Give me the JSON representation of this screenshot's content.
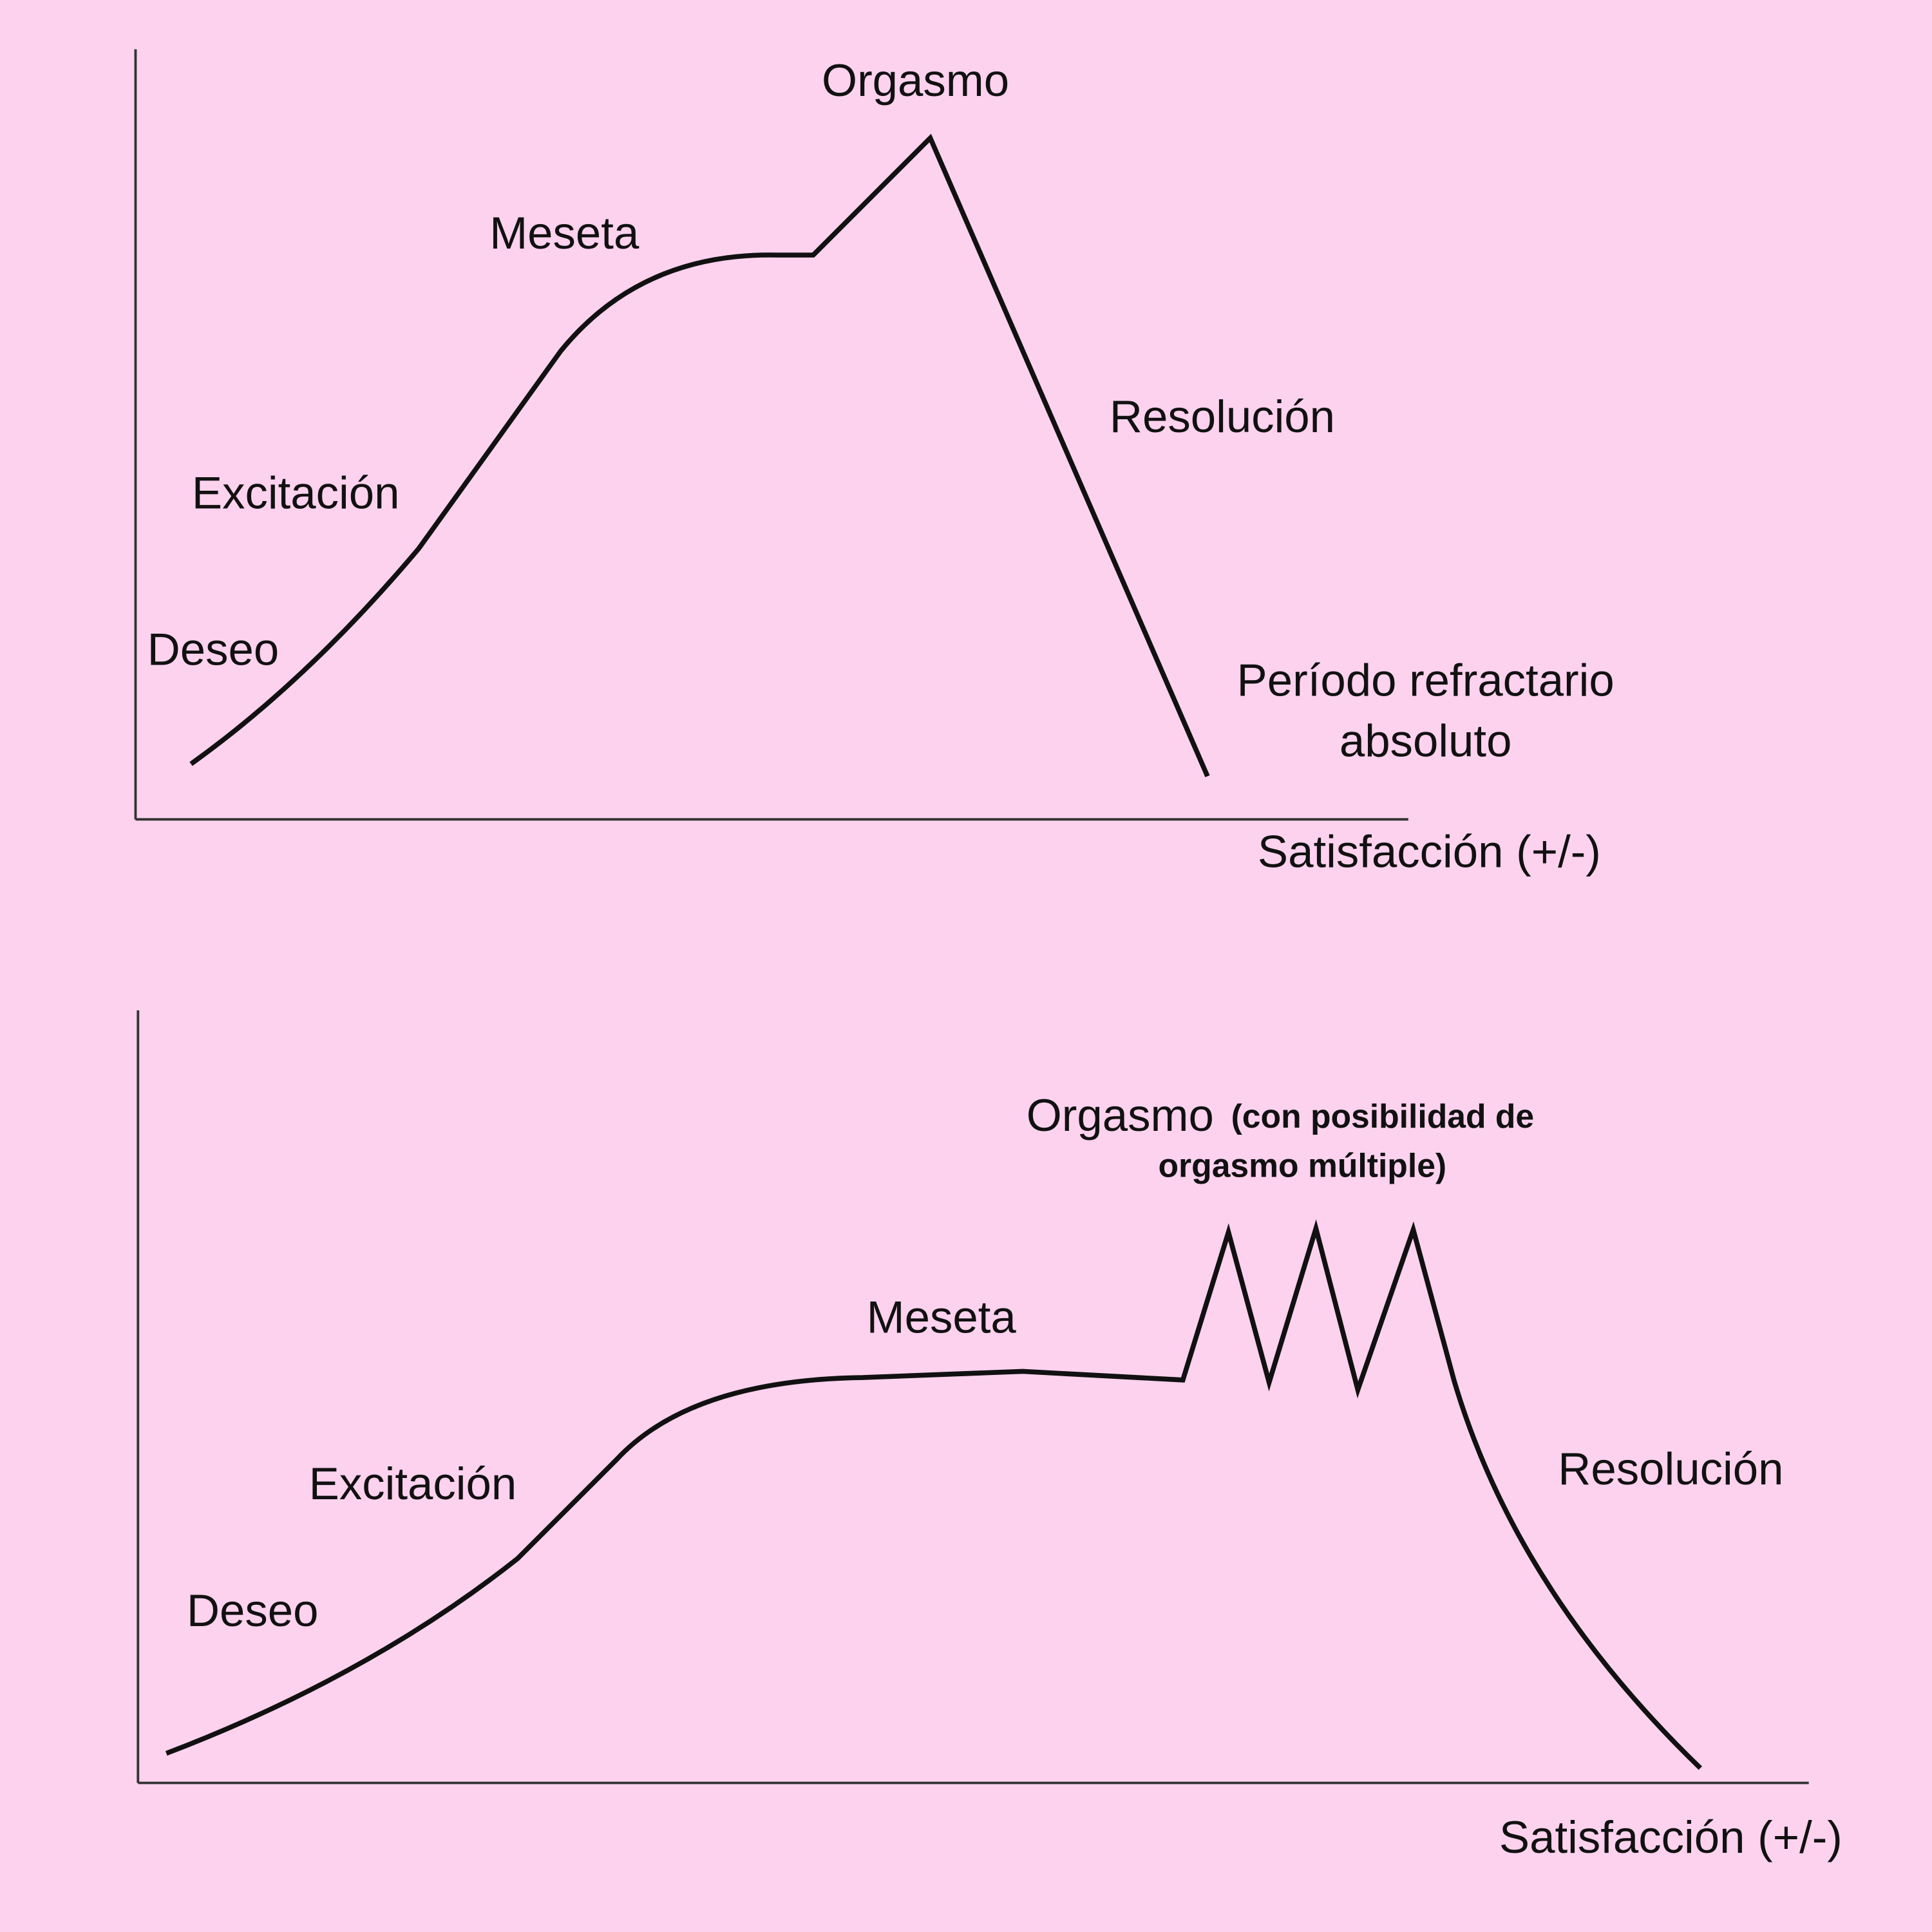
{
  "diagrams": [
    {
      "labels": {
        "deseo": "Deseo",
        "excitacion": "Excitación",
        "meseta": "Meseta",
        "orgasmo": "Orgasmo",
        "resolucion": "Resolución",
        "refractario": [
          "Período refractario",
          "absoluto"
        ]
      },
      "x_axis_label": "Satisfacción (+/-)"
    },
    {
      "labels": {
        "deseo": "Deseo",
        "excitacion": "Excitación",
        "meseta": "Meseta",
        "orgasmo": "Orgasmo",
        "orgasmo_note": [
          "(con posibilidad de",
          "orgasmo múltiple)"
        ],
        "resolucion": "Resolución"
      },
      "x_axis_label": "Satisfacción (+/-)"
    }
  ]
}
